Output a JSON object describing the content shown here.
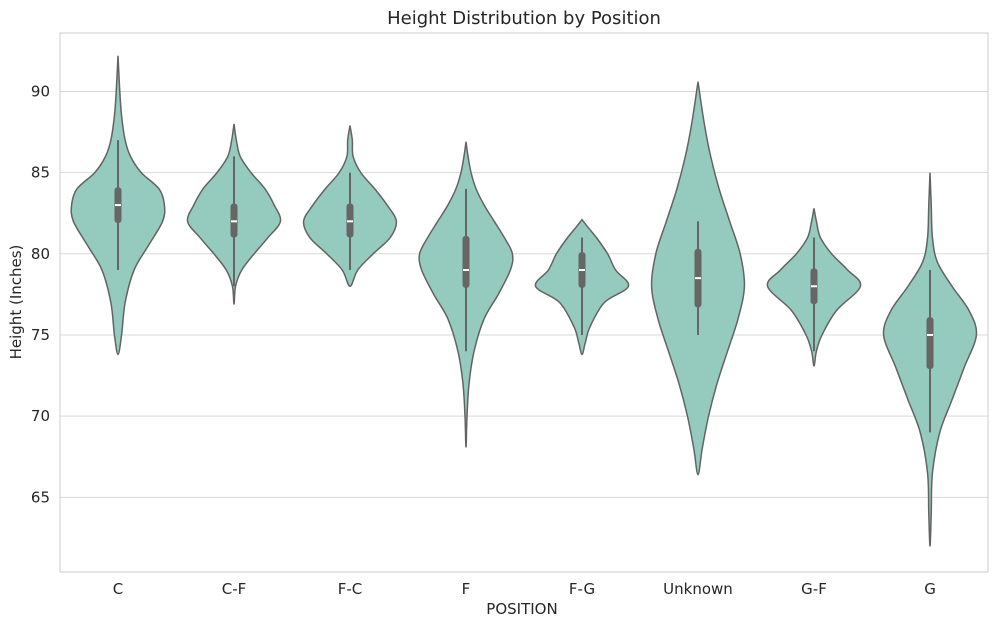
{
  "chart_data": {
    "type": "violin",
    "title": "Height Distribution by Position",
    "xlabel": "POSITION",
    "ylabel": "Height (Inches)",
    "ylim": [
      60.4,
      93.6
    ],
    "yticks": [
      65,
      70,
      75,
      80,
      85,
      90
    ],
    "grid": true,
    "fill_color": "#95cbbe",
    "edge_color": "#636363",
    "inner_color": "#666666",
    "categories": [
      "C",
      "C-F",
      "F-C",
      "F",
      "F-G",
      "Unknown",
      "G-F",
      "G"
    ],
    "violins": [
      {
        "category": "C",
        "min": 73.8,
        "max": 92.2,
        "q1": 81.9,
        "median": 83.0,
        "q3": 84.1,
        "whisker_low": 79.0,
        "whisker_high": 87.0,
        "density": [
          [
            73.8,
            0.0
          ],
          [
            75,
            0.2
          ],
          [
            77,
            0.4
          ],
          [
            79,
            0.9
          ],
          [
            80.5,
            1.7
          ],
          [
            82,
            2.5
          ],
          [
            83,
            2.6
          ],
          [
            84,
            2.3
          ],
          [
            85,
            1.3
          ],
          [
            86,
            0.7
          ],
          [
            87,
            0.4
          ],
          [
            88.5,
            0.2
          ],
          [
            90,
            0.1
          ],
          [
            92.2,
            0.0
          ]
        ]
      },
      {
        "category": "C-F",
        "min": 76.9,
        "max": 88.0,
        "q1": 81.0,
        "median": 82.0,
        "q3": 83.1,
        "whisker_low": 78.0,
        "whisker_high": 86.0,
        "density": [
          [
            76.9,
            0.0
          ],
          [
            78,
            0.1
          ],
          [
            79,
            0.5
          ],
          [
            80,
            1.3
          ],
          [
            81,
            2.2
          ],
          [
            82,
            3.0
          ],
          [
            83,
            2.6
          ],
          [
            84,
            2.0
          ],
          [
            85,
            1.1
          ],
          [
            86,
            0.4
          ],
          [
            87,
            0.15
          ],
          [
            88,
            0.0
          ]
        ]
      },
      {
        "category": "F-C",
        "min": 78.0,
        "max": 87.9,
        "q1": 81.0,
        "median": 82.0,
        "q3": 83.1,
        "whisker_low": 79.0,
        "whisker_high": 85.0,
        "density": [
          [
            78,
            0.0
          ],
          [
            79,
            0.5
          ],
          [
            80,
            1.5
          ],
          [
            81,
            2.6
          ],
          [
            82,
            3.0
          ],
          [
            83,
            2.4
          ],
          [
            84,
            1.6
          ],
          [
            85,
            0.7
          ],
          [
            86,
            0.2
          ],
          [
            87,
            0.15
          ],
          [
            87.9,
            0.0
          ]
        ]
      },
      {
        "category": "F",
        "min": 68.1,
        "max": 86.9,
        "q1": 77.9,
        "median": 79.0,
        "q3": 81.1,
        "whisker_low": 74.0,
        "whisker_high": 84.0,
        "density": [
          [
            68.1,
            0.0
          ],
          [
            70,
            0.05
          ],
          [
            72,
            0.15
          ],
          [
            74,
            0.4
          ],
          [
            76,
            0.9
          ],
          [
            77.5,
            1.6
          ],
          [
            79,
            2.2
          ],
          [
            80,
            2.3
          ],
          [
            81,
            1.9
          ],
          [
            82,
            1.4
          ],
          [
            83,
            0.9
          ],
          [
            84,
            0.5
          ],
          [
            85,
            0.25
          ],
          [
            86,
            0.1
          ],
          [
            86.9,
            0.0
          ]
        ]
      },
      {
        "category": "F-G",
        "min": 73.8,
        "max": 82.1,
        "q1": 77.9,
        "median": 79.0,
        "q3": 80.1,
        "whisker_low": 75.0,
        "whisker_high": 81.0,
        "density": [
          [
            73.8,
            0.0
          ],
          [
            74.5,
            0.2
          ],
          [
            75.5,
            0.5
          ],
          [
            77,
            1.4
          ],
          [
            78,
            2.9
          ],
          [
            79,
            2.1
          ],
          [
            80,
            1.6
          ],
          [
            81,
            0.9
          ],
          [
            81.6,
            0.4
          ],
          [
            82.1,
            0.0
          ]
        ]
      },
      {
        "category": "Unknown",
        "min": 66.4,
        "max": 90.6,
        "q1": 76.7,
        "median": 78.5,
        "q3": 80.3,
        "whisker_low": 75.0,
        "whisker_high": 82.0,
        "density": [
          [
            66.4,
            0.0
          ],
          [
            68,
            0.1
          ],
          [
            70,
            0.25
          ],
          [
            72,
            0.45
          ],
          [
            74,
            0.7
          ],
          [
            76,
            0.95
          ],
          [
            78,
            1.1
          ],
          [
            80,
            1.0
          ],
          [
            82,
            0.75
          ],
          [
            84,
            0.5
          ],
          [
            86,
            0.3
          ],
          [
            88,
            0.15
          ],
          [
            90.6,
            0.0
          ]
        ]
      },
      {
        "category": "G-F",
        "min": 73.1,
        "max": 82.8,
        "q1": 76.9,
        "median": 78.0,
        "q3": 79.1,
        "whisker_low": 74.0,
        "whisker_high": 81.0,
        "density": [
          [
            73.1,
            0.0
          ],
          [
            74,
            0.15
          ],
          [
            75,
            0.5
          ],
          [
            76.5,
            1.4
          ],
          [
            78,
            2.9
          ],
          [
            79,
            2.1
          ],
          [
            80,
            1.1
          ],
          [
            81,
            0.4
          ],
          [
            82,
            0.15
          ],
          [
            82.8,
            0.0
          ]
        ]
      },
      {
        "category": "G",
        "min": 62.0,
        "max": 85.0,
        "q1": 72.9,
        "median": 75.0,
        "q3": 76.1,
        "whisker_low": 69.0,
        "whisker_high": 79.0,
        "density": [
          [
            62,
            0.0
          ],
          [
            64,
            0.05
          ],
          [
            66.5,
            0.1
          ],
          [
            69,
            0.4
          ],
          [
            71,
            0.9
          ],
          [
            73,
            1.4
          ],
          [
            75,
            1.9
          ],
          [
            76.5,
            1.6
          ],
          [
            78,
            0.9
          ],
          [
            79.5,
            0.3
          ],
          [
            81,
            0.1
          ],
          [
            83,
            0.05
          ],
          [
            85,
            0.0
          ]
        ]
      }
    ]
  }
}
